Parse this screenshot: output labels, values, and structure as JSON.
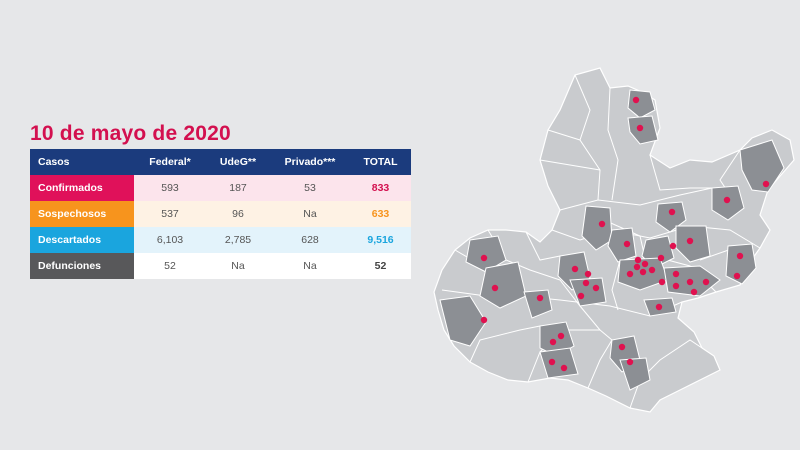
{
  "title": "10 de mayo de 2020",
  "table": {
    "headers": [
      "Casos",
      "Federal*",
      "UdeG**",
      "Privado***",
      "TOTAL"
    ],
    "rows": [
      {
        "label": "Confirmados",
        "federal": "593",
        "udeg": "187",
        "privado": "53",
        "total": "833",
        "label_color": "#e0115a",
        "row_color": "#fce4ec",
        "total_color": "#d3104f"
      },
      {
        "label": "Sospechosos",
        "federal": "537",
        "udeg": "96",
        "privado": "Na",
        "total": "633",
        "label_color": "#f7941d",
        "row_color": "#fef2e4",
        "total_color": "#f7941d"
      },
      {
        "label": "Descartados",
        "federal": "6,103",
        "udeg": "2,785",
        "privado": "628",
        "total": "9,516",
        "label_color": "#1aa5de",
        "row_color": "#e3f3fb",
        "total_color": "#1aa5de"
      },
      {
        "label": "Defunciones",
        "federal": "52",
        "udeg": "Na",
        "privado": "Na",
        "total": "52",
        "label_color": "#58585a",
        "row_color": "#ffffff",
        "total_color": "#444444"
      }
    ]
  },
  "map": {
    "base_color": "#c9cbce",
    "highlight_color": "#8c8f94",
    "border_color": "#ffffff",
    "marker_color": "#e0114f"
  }
}
